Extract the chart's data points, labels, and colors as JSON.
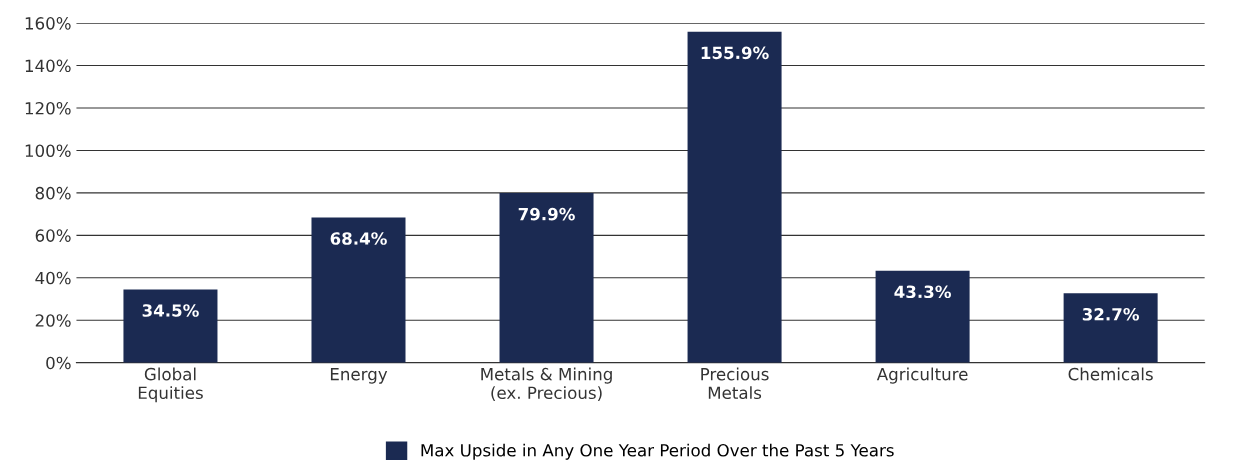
{
  "chart_data": {
    "type": "bar",
    "categories": [
      "Global\nEquities",
      "Energy",
      "Metals & Mining\n(ex. Precious)",
      "Precious\nMetals",
      "Agriculture",
      "Chemicals"
    ],
    "series": [
      {
        "name": "Max Upside in Any One Year Period Over the Past 5 Years",
        "color": "#1b2a52",
        "values": [
          34.5,
          68.4,
          79.9,
          155.9,
          43.3,
          32.7
        ],
        "value_labels": [
          "34.5%",
          "68.4%",
          "79.9%",
          "155.9%",
          "43.3%",
          "32.7%"
        ]
      }
    ],
    "ylim": [
      0,
      160
    ],
    "yticks": [
      {
        "value": 0,
        "label": "0%"
      },
      {
        "value": 20,
        "label": "20%"
      },
      {
        "value": 40,
        "label": "40%"
      },
      {
        "value": 60,
        "label": "60%"
      },
      {
        "value": 80,
        "label": "80%"
      },
      {
        "value": 100,
        "label": "100%"
      },
      {
        "value": 120,
        "label": "120%"
      },
      {
        "value": 140,
        "label": "140%"
      },
      {
        "value": 160,
        "label": "160%"
      }
    ],
    "grid": "y",
    "legend": "bottom"
  }
}
